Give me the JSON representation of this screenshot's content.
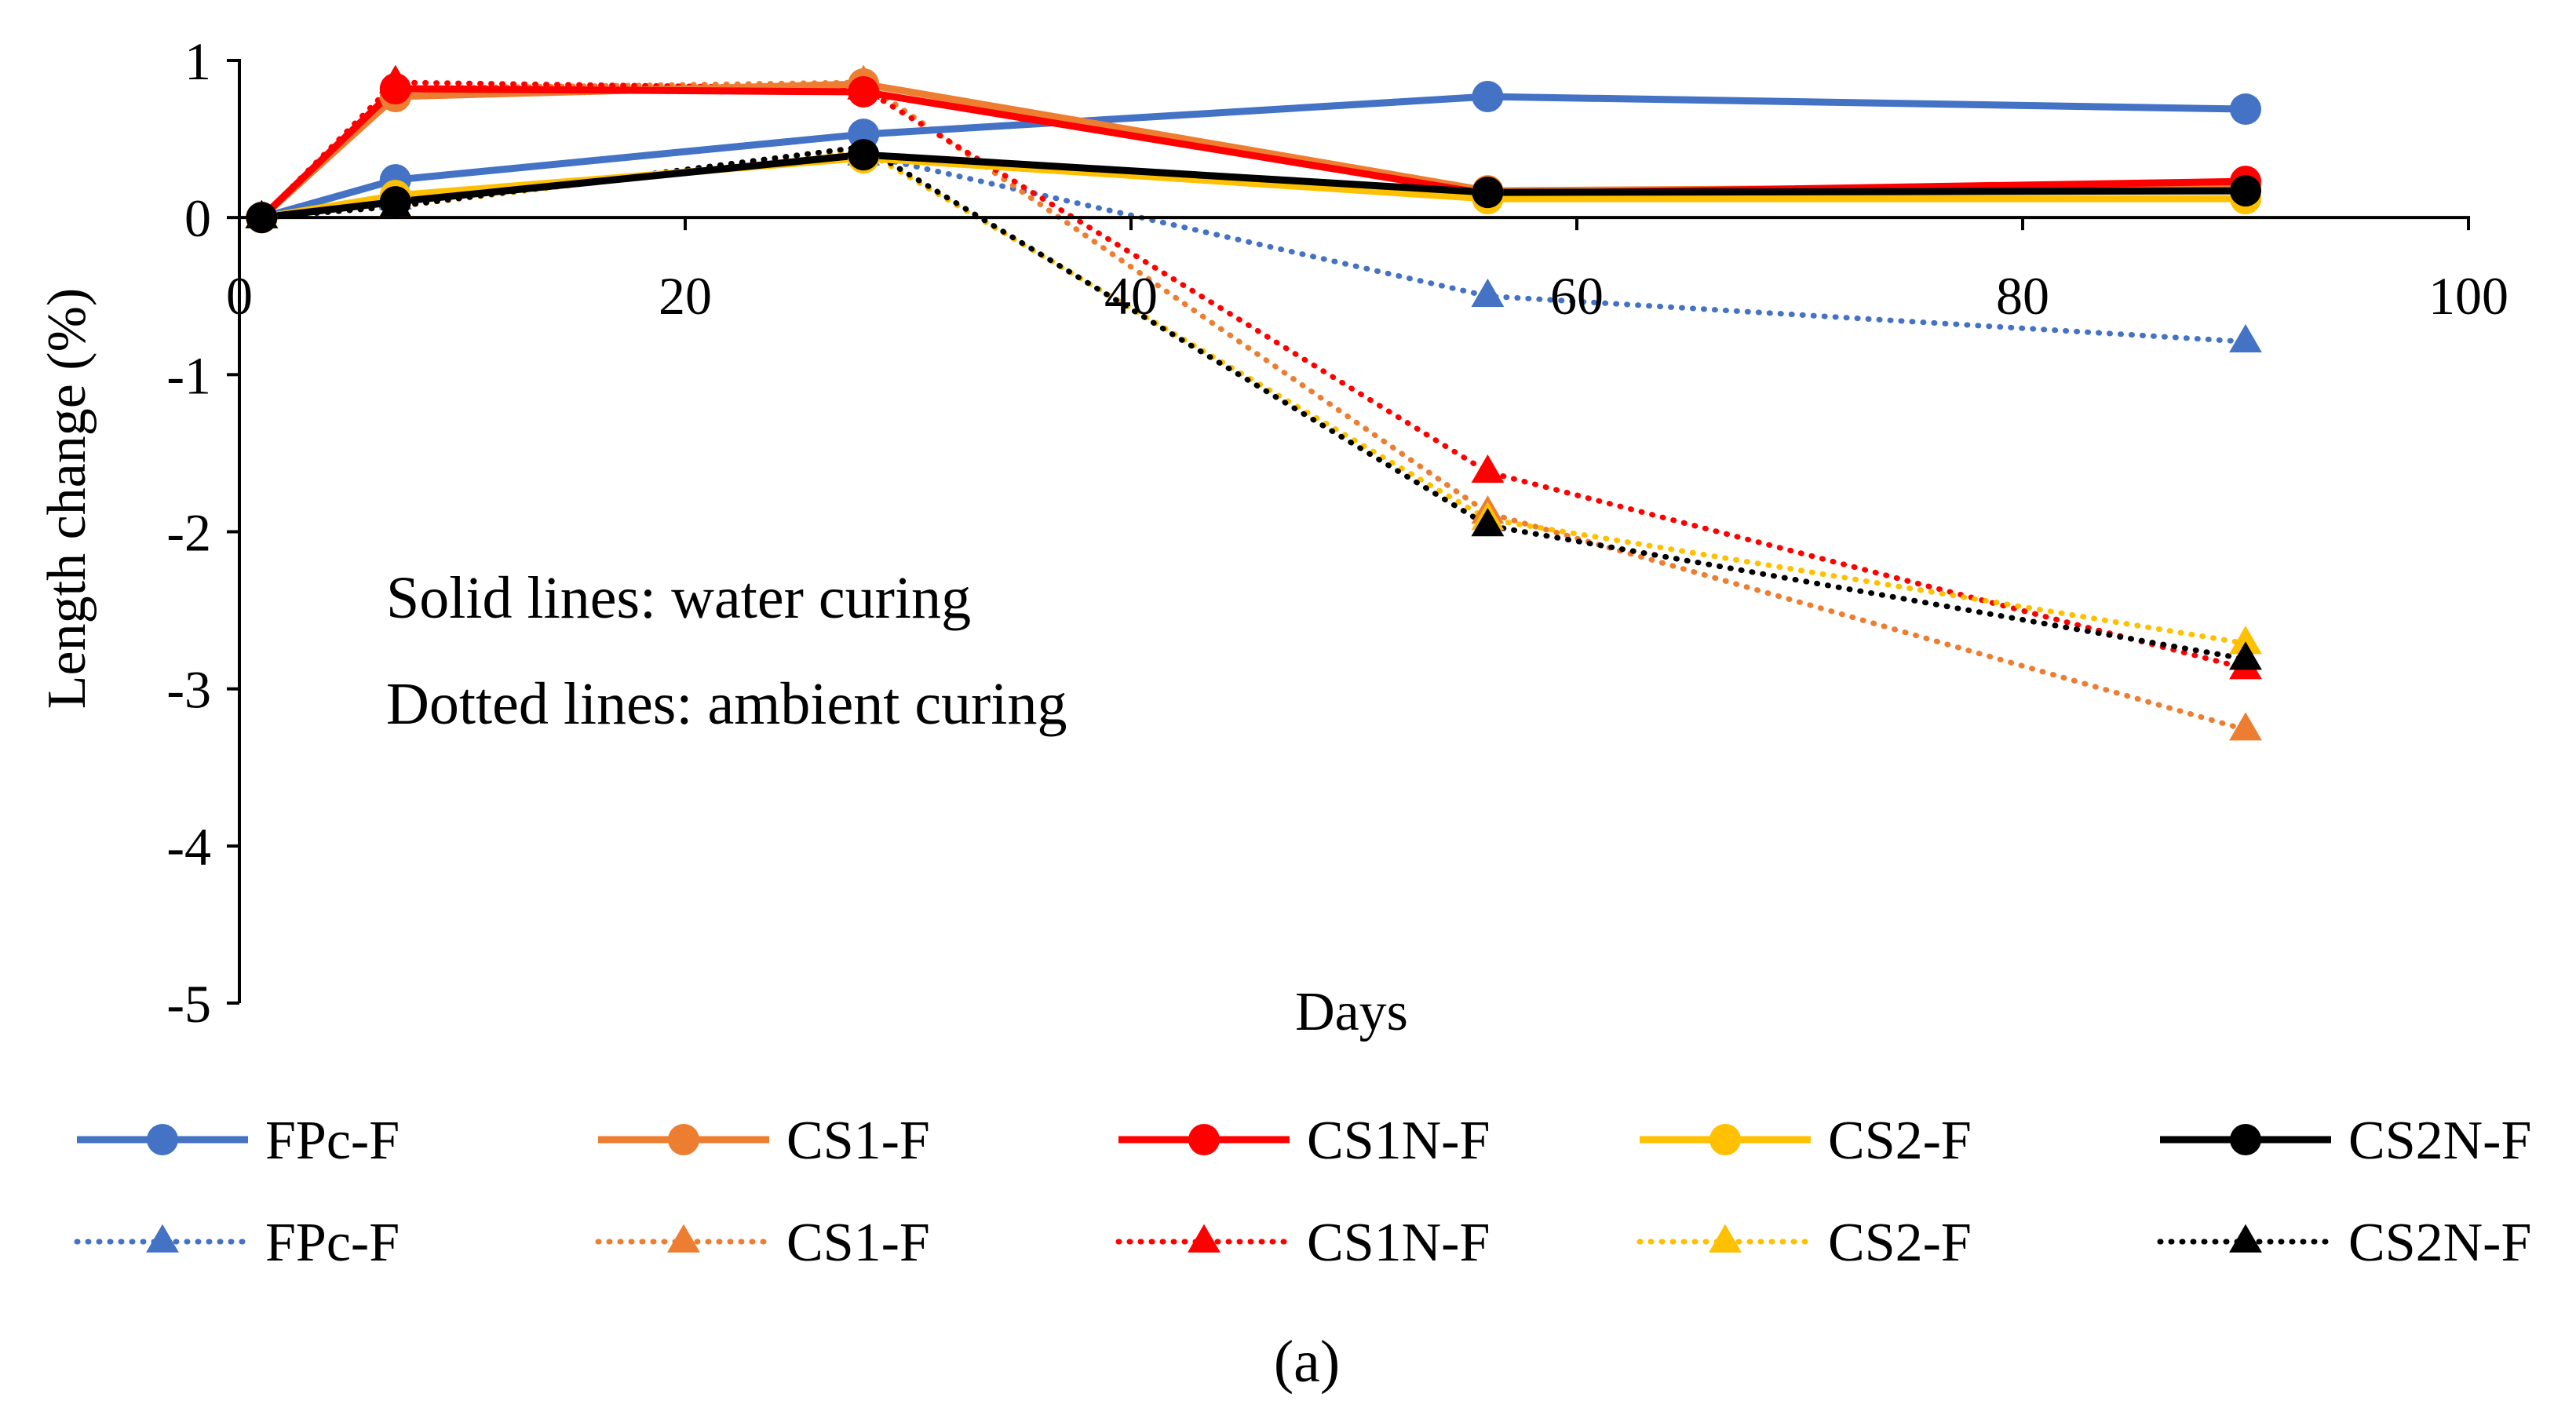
{
  "chart_data": {
    "type": "line",
    "xlabel": "Days",
    "ylabel": "Length change (%)",
    "xlim": [
      0,
      100
    ],
    "ylim": [
      -5,
      1
    ],
    "xticks": [
      "0",
      "20",
      "40",
      "60",
      "80",
      "100"
    ],
    "yticks": [
      "1",
      "0",
      "-1",
      "-2",
      "-3",
      "-4",
      "-5"
    ],
    "grid": false,
    "legend_position": "bottom",
    "annotations": [
      "Solid lines: water curing",
      "Dotted lines: ambient curing"
    ],
    "caption": "(a)",
    "x": [
      1,
      7,
      28,
      56,
      90
    ],
    "series": [
      {
        "name": "FPc-F",
        "curing": "water",
        "line": "solid",
        "marker": "circle",
        "color": "#4472C4",
        "values": [
          0,
          0.24,
          0.53,
          0.77,
          0.69
        ]
      },
      {
        "name": "CS1-F",
        "curing": "water",
        "line": "solid",
        "marker": "circle",
        "color": "#ED7D31",
        "values": [
          0,
          0.77,
          0.85,
          0.17,
          0.2
        ]
      },
      {
        "name": "CS1N-F",
        "curing": "water",
        "line": "solid",
        "marker": "circle",
        "color": "#FF0000",
        "values": [
          0,
          0.82,
          0.8,
          0.15,
          0.23
        ]
      },
      {
        "name": "CS2-F",
        "curing": "water",
        "line": "solid",
        "marker": "circle",
        "color": "#FFC000",
        "values": [
          0,
          0.14,
          0.38,
          0.12,
          0.12
        ]
      },
      {
        "name": "CS2N-F",
        "curing": "water",
        "line": "solid",
        "marker": "circle",
        "color": "#000000",
        "values": [
          0,
          0.1,
          0.4,
          0.16,
          0.17
        ]
      },
      {
        "name": "FPc-F",
        "curing": "ambient",
        "line": "dotted",
        "marker": "triangle",
        "color": "#4472C4",
        "values": [
          0,
          0.12,
          0.4,
          -0.5,
          -0.79
        ]
      },
      {
        "name": "CS1-F",
        "curing": "ambient",
        "line": "dotted",
        "marker": "triangle",
        "color": "#ED7D31",
        "values": [
          0,
          0.82,
          0.86,
          -1.88,
          -3.26
        ]
      },
      {
        "name": "CS1N-F",
        "curing": "ambient",
        "line": "dotted",
        "marker": "triangle",
        "color": "#FF0000",
        "values": [
          0,
          0.86,
          0.82,
          -1.62,
          -2.87
        ]
      },
      {
        "name": "CS2-F",
        "curing": "ambient",
        "line": "dotted",
        "marker": "triangle",
        "color": "#FFC000",
        "values": [
          0,
          0.07,
          0.43,
          -1.92,
          -2.71
        ]
      },
      {
        "name": "CS2N-F",
        "curing": "ambient",
        "line": "dotted",
        "marker": "triangle",
        "color": "#000000",
        "values": [
          0,
          0.07,
          0.45,
          -1.96,
          -2.81
        ]
      }
    ]
  }
}
